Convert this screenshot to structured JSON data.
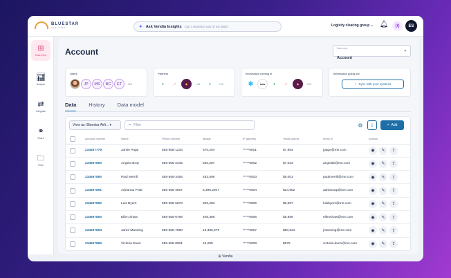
{
  "brand": {
    "name": "BLUESTAR",
    "sub": "AIRLINES"
  },
  "search": {
    "title": "Ask Vendia Insights",
    "placeholder": "Can I monetize any of my data?"
  },
  "org_selector": "Logixity clearing group",
  "user_initials": "ES",
  "code_icon_label": "{/}",
  "sidebar": [
    {
      "label": "Data View",
      "icon": "grid-icon",
      "active": true
    },
    {
      "label": "Analyze",
      "icon": "bar-chart-icon",
      "active": false
    },
    {
      "label": "Integrate",
      "icon": "arrows-icon",
      "active": false
    },
    {
      "label": "Share",
      "icon": "handshake-icon",
      "active": false
    },
    {
      "label": "Files",
      "icon": "folder-icon",
      "active": false
    }
  ],
  "page": {
    "title": "Account"
  },
  "data_source": {
    "label": "Data view",
    "value": "Account"
  },
  "cards": {
    "users": {
      "title": "Users",
      "initials": [
        "JP",
        "MS",
        "BC",
        "ET"
      ],
      "more": "+10"
    },
    "partners": {
      "title": "Partners",
      "more": "+10"
    },
    "info_in": {
      "title": "Information coming in",
      "logos": [
        "aws"
      ],
      "more": "+10"
    },
    "info_out": {
      "title": "Information going out",
      "button": "Sync with your systems"
    }
  },
  "tabs": [
    "Data",
    "History",
    "Data model"
  ],
  "toolbar": {
    "view_as": "View as: Bluestar Airli...",
    "filter_placeholder": "Filter",
    "add": "Add"
  },
  "columns": [
    "Account number",
    "Name",
    "Phone number",
    "Milage",
    "IP address",
    "Yearly spend",
    "email",
    "Actions"
  ],
  "rows": [
    [
      "234567779",
      "Jamie Page",
      "555-555-1234",
      "570,204",
      "*****0001",
      "$7,964",
      "jpage@me.com"
    ],
    [
      "234567890",
      "Angela Bray",
      "555-555-2345",
      "530,287",
      "*****0002",
      "$7,023",
      "angelab@me.com"
    ],
    [
      "234567890",
      "Paul Merrill",
      "555-555-3456",
      "483,596",
      "*****0003",
      "$6,003",
      "paulmerrill@me.com"
    ],
    [
      "234567891",
      "Adrianna Pratt",
      "555-555-4567",
      "5,396,2947",
      "*****0004",
      "$24,952",
      "adriannap@me.com"
    ],
    [
      "234567892",
      "Luis Byers",
      "555-555-5678",
      "506,283",
      "*****0005",
      "$6,587",
      "luisbyers@me.com"
    ],
    [
      "234567893",
      "Ellen Shaw",
      "555-555-6789",
      "408,386",
      "*****0006",
      "$5,986",
      "ellenshaw@me.com"
    ],
    [
      "234567894",
      "Jared Manning",
      "555-555-7890",
      "10,386,379",
      "*****0007",
      "$50,634",
      "jmanning@me.com"
    ],
    [
      "234567895",
      "Victoria Dunn",
      "555-555-8901",
      "10,298",
      "*****0008",
      "$576",
      "victoria.dunn@me.com"
    ]
  ],
  "footer": "Vendia"
}
